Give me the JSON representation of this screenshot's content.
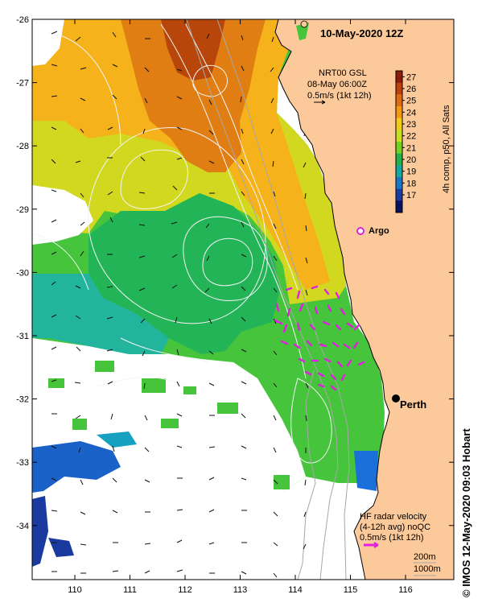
{
  "header": {
    "timestamp": "10-May-2020 12Z"
  },
  "model_info": {
    "line1": "NRT00 GSL",
    "line2": "08-May 06:00Z",
    "line3": "0.5m/s (1kt 12h)"
  },
  "colorbar": {
    "label": "4h comp, p50, All Sats",
    "ticks": [
      "27",
      "26",
      "25",
      "24",
      "23",
      "22",
      "21",
      "20",
      "19",
      "18",
      "17"
    ],
    "colors": [
      "#8a1d05",
      "#c0400a",
      "#e06a10",
      "#f59a10",
      "#f2cc12",
      "#c8e020",
      "#72d21e",
      "#22b04c",
      "#14a8a0",
      "#1878c8",
      "#1a3aa0",
      "#0a1060"
    ]
  },
  "axes": {
    "lon_ticks": [
      "110",
      "111",
      "112",
      "113",
      "114",
      "115",
      "116"
    ],
    "lat_ticks": [
      "-26",
      "-27",
      "-28",
      "-29",
      "-30",
      "-31",
      "-32",
      "-33",
      "-34"
    ]
  },
  "labels": {
    "argo": "Argo",
    "perth": "Perth"
  },
  "hf_radar": {
    "line1": "HF radar velocity",
    "line2": "(4-12h avg) noQC",
    "line3": "0.5m/s (1kt 12h)"
  },
  "bathymetry_legend": {
    "line1": "200m",
    "line2": "1000m"
  },
  "credit": "© IMOS 12-May-2020 09:03 Hobart",
  "colors": {
    "land": "#fcc99a",
    "hf_radar_vector": "#e020e0",
    "argo_marker": "#e020e0",
    "contour": "#f4f4f4",
    "bathymetry": "#a8a8a8"
  }
}
